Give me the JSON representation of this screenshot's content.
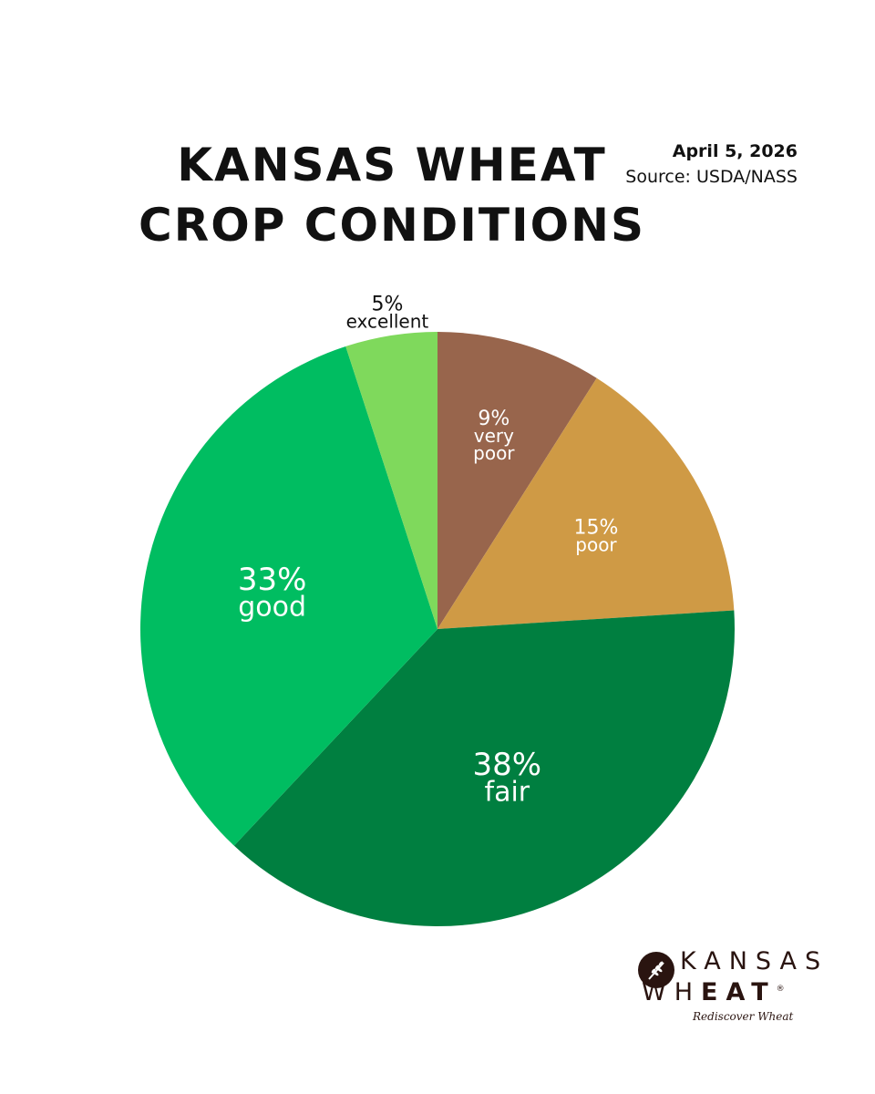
{
  "header": {
    "title_line1": "KANSAS WHEAT",
    "title_line2": "CROP CONDITIONS",
    "date": "April 5, 2026",
    "source": "Source: USDA/NASS"
  },
  "chart_data": {
    "type": "pie",
    "slices": [
      {
        "label": "very poor",
        "value": 9,
        "pct_label": "9%",
        "color": "#98654c",
        "text_color": "#ffffff"
      },
      {
        "label": "poor",
        "value": 15,
        "pct_label": "15%",
        "color": "#cf9a45",
        "text_color": "#ffffff"
      },
      {
        "label": "fair",
        "value": 38,
        "pct_label": "38%",
        "color": "#007f40",
        "text_color": "#ffffff"
      },
      {
        "label": "good",
        "value": 33,
        "pct_label": "33%",
        "color": "#00bd61",
        "text_color": "#ffffff"
      },
      {
        "label": "excellent",
        "value": 5,
        "pct_label": "5%",
        "color": "#7fd95c",
        "text_color": "#111111"
      }
    ],
    "start": "12 o'clock",
    "direction": "clockwise"
  },
  "logo": {
    "line1": "KANSAS",
    "line2_a": "WH",
    "line2_b": "EAT",
    "registered": "®",
    "tagline": "Rediscover Wheat",
    "icon": "wheat-icon"
  }
}
